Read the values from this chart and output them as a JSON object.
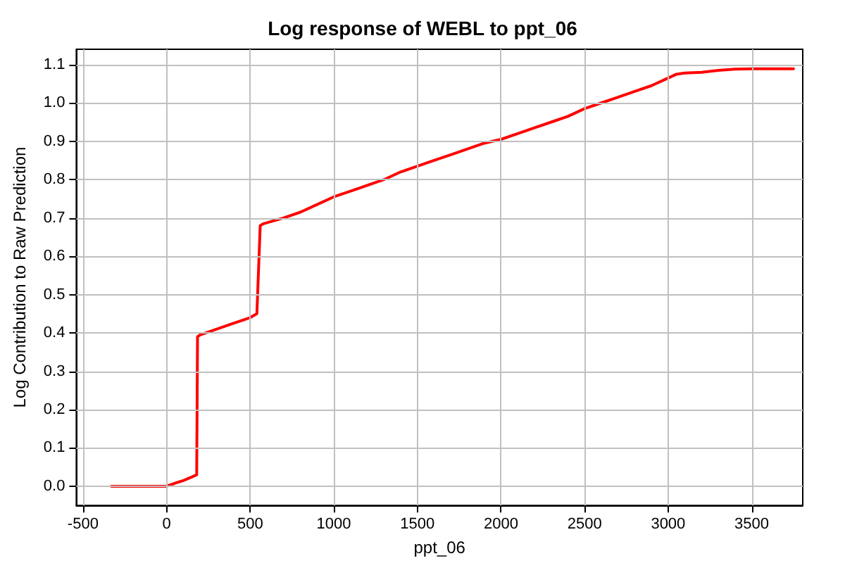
{
  "chart_data": {
    "type": "line",
    "title": "Log response of WEBL to ppt_06",
    "xlabel": "ppt_06",
    "ylabel": "Log Contribution to Raw Prediction",
    "x": [
      -330,
      -200,
      -100,
      0,
      50,
      100,
      150,
      180,
      185,
      200,
      300,
      400,
      500,
      540,
      560,
      580,
      700,
      800,
      900,
      1000,
      1100,
      1200,
      1300,
      1400,
      1500,
      1600,
      1700,
      1800,
      1900,
      2000,
      2100,
      2200,
      2300,
      2400,
      2500,
      2600,
      2700,
      2800,
      2900,
      3000,
      3050,
      3100,
      3200,
      3300,
      3400,
      3500,
      3600,
      3750
    ],
    "series": [
      {
        "color": "#ff0000",
        "values": [
          0,
          0,
          0,
          0,
          0.008,
          0.015,
          0.024,
          0.03,
          0.39,
          0.395,
          0.41,
          0.425,
          0.44,
          0.45,
          0.68,
          0.685,
          0.7,
          0.715,
          0.735,
          0.755,
          0.77,
          0.785,
          0.8,
          0.82,
          0.835,
          0.85,
          0.865,
          0.88,
          0.895,
          0.905,
          0.92,
          0.935,
          0.95,
          0.965,
          0.985,
          1.0,
          1.015,
          1.03,
          1.045,
          1.065,
          1.075,
          1.078,
          1.08,
          1.085,
          1.088,
          1.089,
          1.089,
          1.089
        ]
      }
    ],
    "xlim": [
      -540,
      3805
    ],
    "ylim": [
      -0.05,
      1.14
    ],
    "xticks": [
      -500,
      0,
      500,
      1000,
      1500,
      2000,
      2500,
      3000,
      3500
    ],
    "yticks": [
      {
        "value": 0,
        "label": "0.0"
      },
      {
        "value": 0.1,
        "label": "0.1"
      },
      {
        "value": 0.2,
        "label": "0.2"
      },
      {
        "value": 0.3,
        "label": "0.3"
      },
      {
        "value": 0.4,
        "label": "0.4"
      },
      {
        "value": 0.5,
        "label": "0.5"
      },
      {
        "value": 0.6,
        "label": "0.6"
      },
      {
        "value": 0.7,
        "label": "0.7"
      },
      {
        "value": 0.8,
        "label": "0.8"
      },
      {
        "value": 0.9,
        "label": "0.9"
      },
      {
        "value": 1.0,
        "label": "1.0"
      },
      {
        "value": 1.1,
        "label": "1.1"
      }
    ],
    "grid": true,
    "line_style": "solid"
  }
}
